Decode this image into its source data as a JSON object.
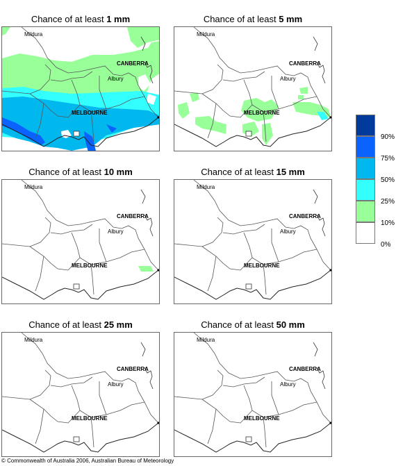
{
  "panels": [
    {
      "prefix": "Chance of at least ",
      "amount": "1 mm"
    },
    {
      "prefix": "Chance of at least ",
      "amount": "5 mm"
    },
    {
      "prefix": "Chance of at least ",
      "amount": "10 mm"
    },
    {
      "prefix": "Chance of at least ",
      "amount": "15 mm"
    },
    {
      "prefix": "Chance of at least ",
      "amount": "25 mm"
    },
    {
      "prefix": "Chance of at least ",
      "amount": "50 mm"
    }
  ],
  "places": {
    "mildura": "Mildura",
    "canberra": "CANBERRA",
    "albury": "Albury",
    "melbourne": "MELBOURNE"
  },
  "legend": {
    "ticks": [
      "90%",
      "75%",
      "50%",
      "25%",
      "10%",
      "0%"
    ],
    "colors": [
      "#003a9a",
      "#0a63ff",
      "#00b7ee",
      "#33ffff",
      "#99ff99",
      "#ffffff"
    ]
  },
  "footer": {
    "copyright": "© Commonwealth of Australia 2006, Australian Bureau of Meteorology"
  }
}
